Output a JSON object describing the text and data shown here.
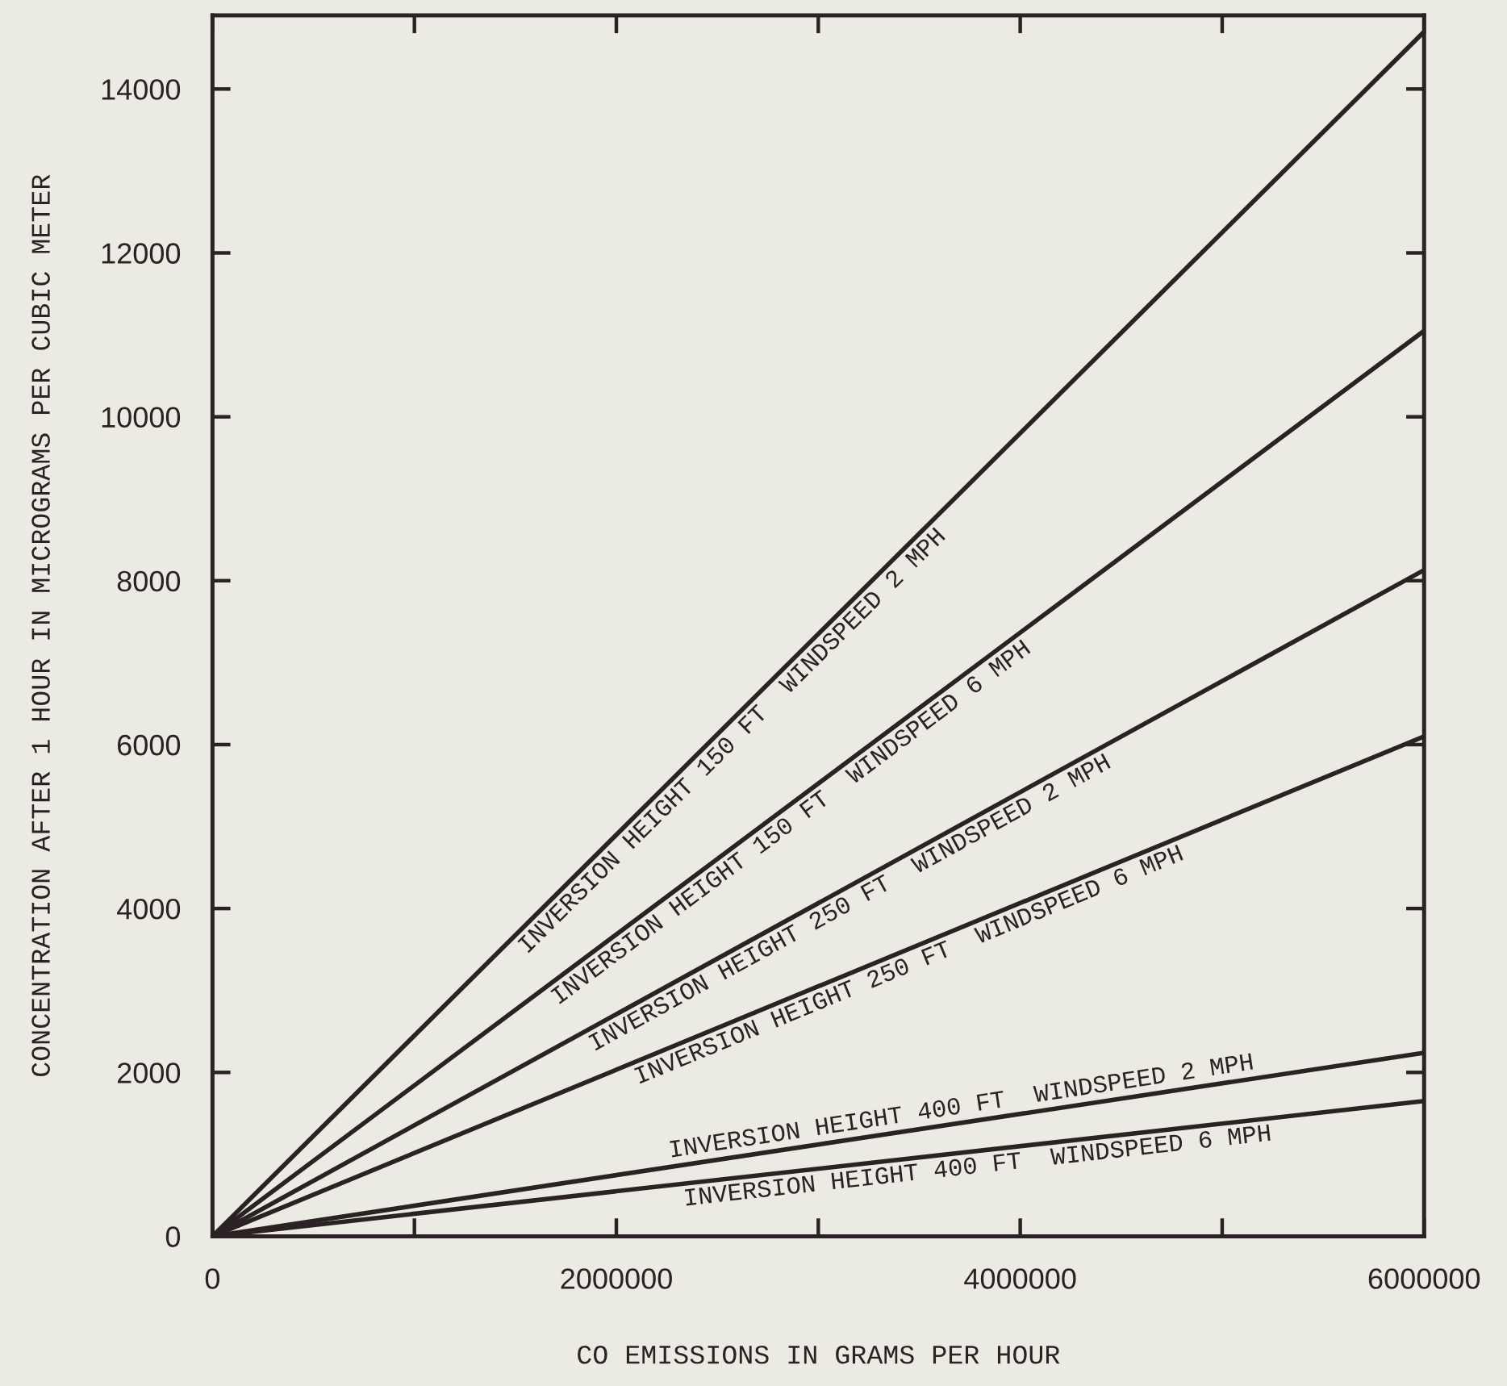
{
  "chart_data": {
    "type": "line",
    "xlabel": "CO EMISSIONS IN GRAMS PER HOUR",
    "ylabel": "CONCENTRATION AFTER 1 HOUR IN MICROGRAMS PER CUBIC METER",
    "x": [
      0,
      6000000
    ],
    "series": [
      {
        "name": "INVERSION HEIGHT 150 FT  WINDSPEED 2 MPH",
        "color": "#2b2323",
        "values": [
          0,
          14700
        ]
      },
      {
        "name": "INVERSION HEIGHT 150 FT  WINDSPEED 6 MPH",
        "color": "#2b2323",
        "values": [
          0,
          11050
        ]
      },
      {
        "name": "INVERSION HEIGHT 250 FT  WINDSPEED 2 MPH",
        "color": "#2b2323",
        "values": [
          0,
          8130
        ]
      },
      {
        "name": "INVERSION HEIGHT 250 FT  WINDSPEED 6 MPH",
        "color": "#2b2323",
        "values": [
          0,
          6100
        ]
      },
      {
        "name": "INVERSION HEIGHT 400 FT  WINDSPEED 2 MPH",
        "color": "#2b2323",
        "values": [
          0,
          2240
        ]
      },
      {
        "name": "INVERSION HEIGHT 400 FT  WINDSPEED 6 MPH",
        "color": "#2b2323",
        "values": [
          0,
          1650
        ]
      }
    ],
    "xlim": [
      0,
      6000000
    ],
    "ylim": [
      0,
      14900
    ],
    "xticks": [
      0,
      {
        "value": 1000000,
        "label": null
      },
      2000000,
      {
        "value": 3000000,
        "label": null
      },
      4000000,
      {
        "value": 5000000,
        "label": null
      },
      6000000
    ],
    "yticks": [
      0,
      2000,
      4000,
      6000,
      8000,
      10000,
      12000,
      14000
    ],
    "grid": false,
    "legend": false,
    "marker": "none",
    "line_style": "solid"
  }
}
